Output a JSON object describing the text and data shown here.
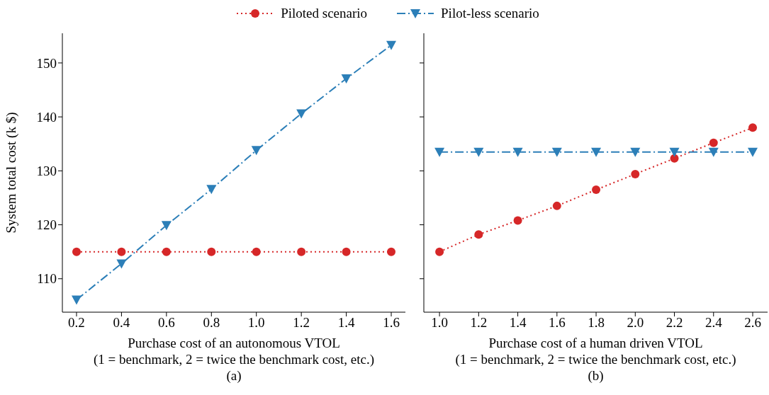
{
  "chart_data": [
    {
      "type": "line",
      "xlabel": "Purchase cost of an autonomous VTOL\n(1 = benchmark, 2 = twice the benchmark cost, etc.)",
      "ylabel": "System total cost (k $)",
      "annotations": [
        "(a)"
      ],
      "x": [
        0.2,
        0.4,
        0.6,
        0.8,
        1.0,
        1.2,
        1.4,
        1.6
      ],
      "xlim": [
        0.137,
        1.663
      ],
      "xticks": [
        {
          "value": 0.2,
          "label": "0.2"
        },
        {
          "value": 0.4,
          "label": "0.4"
        },
        {
          "value": 0.6,
          "label": "0.6"
        },
        {
          "value": 0.8,
          "label": "0.8"
        },
        {
          "value": 1.0,
          "label": "1.0"
        },
        {
          "value": 1.2,
          "label": "1.2"
        },
        {
          "value": 1.4,
          "label": "1.4"
        },
        {
          "value": 1.6,
          "label": "1.6"
        }
      ],
      "ylim": [
        103.8,
        155.5
      ],
      "yticks": [
        110,
        120,
        130,
        140,
        150
      ],
      "legend": "top",
      "grid": false,
      "series": [
        {
          "name": "Piloted scenario",
          "color": "#d62728",
          "marker": "circle",
          "line_style": "dotted",
          "values": [
            115.0,
            115.0,
            115.0,
            115.0,
            115.0,
            115.0,
            115.0,
            115.0
          ]
        },
        {
          "name": "Pilot-less scenario",
          "color": "#2c7fb8",
          "marker": "triangle",
          "line_style": "dashed",
          "values": [
            106.1,
            112.8,
            119.9,
            126.6,
            133.8,
            140.6,
            147.1,
            153.3
          ]
        }
      ]
    },
    {
      "type": "line",
      "xlabel": "Purchase cost of a human driven VTOL\n(1 = benchmark, 2 = twice the benchmark cost, etc.)",
      "annotations": [
        "(b)"
      ],
      "x": [
        1.0,
        1.2,
        1.4,
        1.6,
        1.8,
        2.0,
        2.2,
        2.4,
        2.6
      ],
      "xlim": [
        0.92,
        2.676
      ],
      "xticks": [
        {
          "value": 1.0,
          "label": "1.0"
        },
        {
          "value": 1.2,
          "label": "1.2"
        },
        {
          "value": 1.4,
          "label": "1.4"
        },
        {
          "value": 1.6,
          "label": "1.6"
        },
        {
          "value": 1.8,
          "label": "1.8"
        },
        {
          "value": 2.0,
          "label": "2.0"
        },
        {
          "value": 2.2,
          "label": "2.2"
        },
        {
          "value": 2.4,
          "label": "2.4"
        },
        {
          "value": 2.6,
          "label": "2.6"
        }
      ],
      "ylim": [
        103.8,
        155.5
      ],
      "yticks": [
        110,
        120,
        130,
        140,
        150
      ],
      "tick_labels": "x",
      "grid": false,
      "series": [
        {
          "color": "#d62728",
          "marker": "circle",
          "line_style": "dotted",
          "values": [
            115.0,
            118.2,
            120.8,
            123.5,
            126.5,
            129.4,
            132.3,
            135.2,
            138.0
          ]
        },
        {
          "color": "#2c7fb8",
          "marker": "triangle",
          "line_style": "dashed",
          "values": [
            133.5,
            133.5,
            133.5,
            133.5,
            133.5,
            133.5,
            133.5,
            133.5,
            133.5
          ]
        }
      ]
    }
  ]
}
